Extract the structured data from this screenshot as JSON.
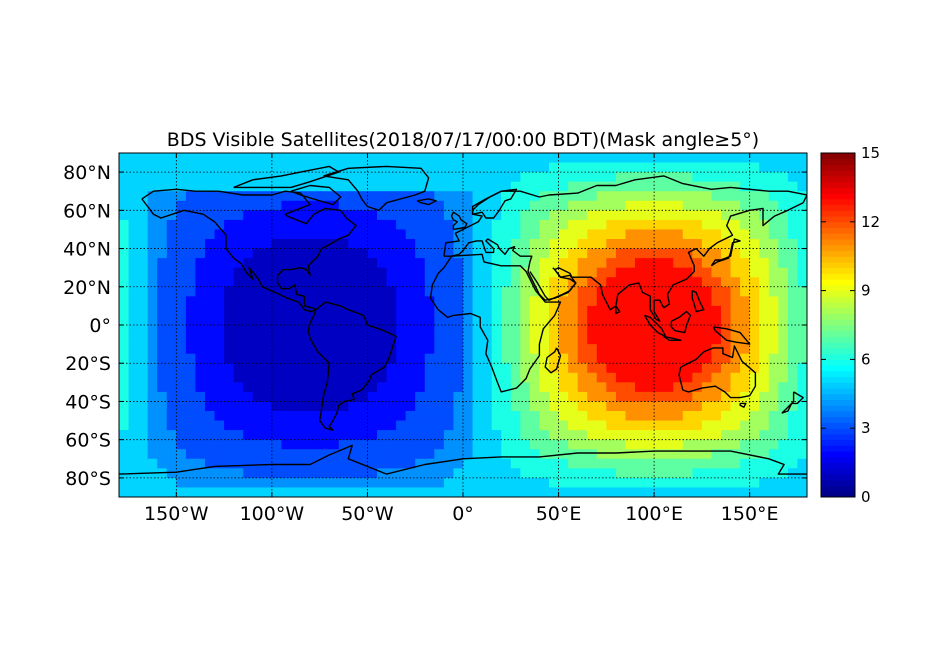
{
  "title": "BDS Visible Satellites(2018/07/17/00:00 BDT)(Mask angle≥5°)",
  "axes": {
    "x_tick_labels": [
      "150°W",
      "100°W",
      "50°W",
      "0°",
      "50°E",
      "100°E",
      "150°E"
    ],
    "y_tick_labels": [
      "80°N",
      "60°N",
      "40°N",
      "20°N",
      "0°",
      "20°S",
      "40°S",
      "60°S",
      "80°S"
    ],
    "xlim": [
      -180,
      180
    ],
    "ylim": [
      -90,
      90
    ]
  },
  "colorbar": {
    "tick_labels": [
      "15",
      "12",
      "9",
      "6",
      "3",
      "0"
    ],
    "range": [
      0,
      15
    ],
    "colormap": "jet"
  },
  "chart_data": {
    "type": "heatmap",
    "title": "BDS Visible Satellites(2018/07/17/00:00 BDT)(Mask angle≥5°)",
    "x_ticks": [
      -150,
      -100,
      -50,
      0,
      50,
      100,
      150
    ],
    "y_ticks": [
      80,
      60,
      40,
      20,
      0,
      -20,
      -40,
      -60,
      -80
    ],
    "xlim": [
      -180,
      180
    ],
    "ylim": [
      -90,
      90
    ],
    "grid": true,
    "colorbar_range": [
      0,
      15
    ],
    "colormap": "jet",
    "cell_deg": 5,
    "field_description_note": "",
    "visibility_peaks": [
      {
        "lon": 95,
        "lat": 5,
        "value": 13
      },
      {
        "lon": -85,
        "lat": -5,
        "value": 0
      }
    ]
  },
  "coastlines": {
    "color": "#000000"
  }
}
